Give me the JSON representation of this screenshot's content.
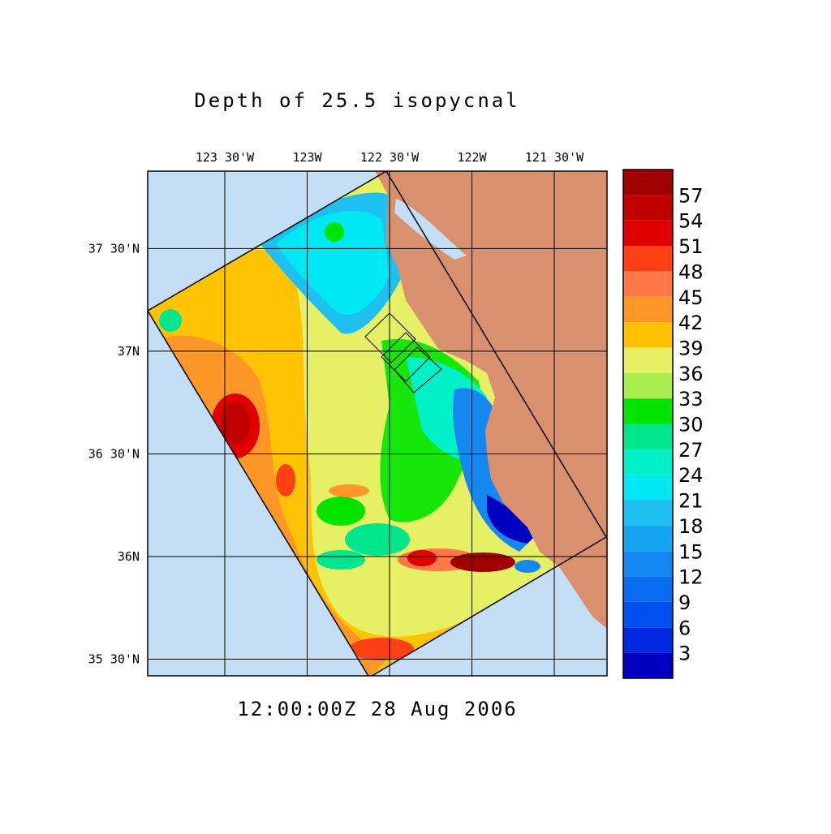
{
  "map": {
    "title": "Depth of 25.5 isopycnal",
    "timestamp": "12:00:00Z  28 Aug 2006",
    "xlim": [
      -123.968,
      -121.18
    ],
    "ylim": [
      35.419,
      37.877
    ],
    "xticks": [
      {
        "value": -123.5,
        "label": "123 30'W"
      },
      {
        "value": -123,
        "label": "123W"
      },
      {
        "value": -122.5,
        "label": "122 30'W"
      },
      {
        "value": -122,
        "label": "122W"
      },
      {
        "value": -121.5,
        "label": "121 30'W"
      }
    ],
    "yticks": [
      {
        "value": 37.5,
        "label": "37 30'N"
      },
      {
        "value": 37,
        "label": "37N"
      },
      {
        "value": 36.5,
        "label": "36 30'N"
      },
      {
        "value": 36,
        "label": "36N"
      },
      {
        "value": 35.5,
        "label": "35 30'N"
      }
    ],
    "grid": true,
    "colorbar": {
      "levels": [
        3,
        6,
        9,
        12,
        15,
        18,
        21,
        24,
        27,
        30,
        33,
        36,
        39,
        42,
        45,
        48,
        51,
        54,
        57
      ],
      "colors": [
        "#0000c0",
        "#0028e0",
        "#0050f0",
        "#0a6cf0",
        "#1488f0",
        "#14a4f0",
        "#1ec0f0",
        "#00e8f4",
        "#00f0c8",
        "#00e68c",
        "#00e400",
        "#a8ec50",
        "#e6f064",
        "#ffc000",
        "#ff9628",
        "#ff7846",
        "#ff4014",
        "#e00000",
        "#c00000",
        "#a00000"
      ]
    }
  }
}
